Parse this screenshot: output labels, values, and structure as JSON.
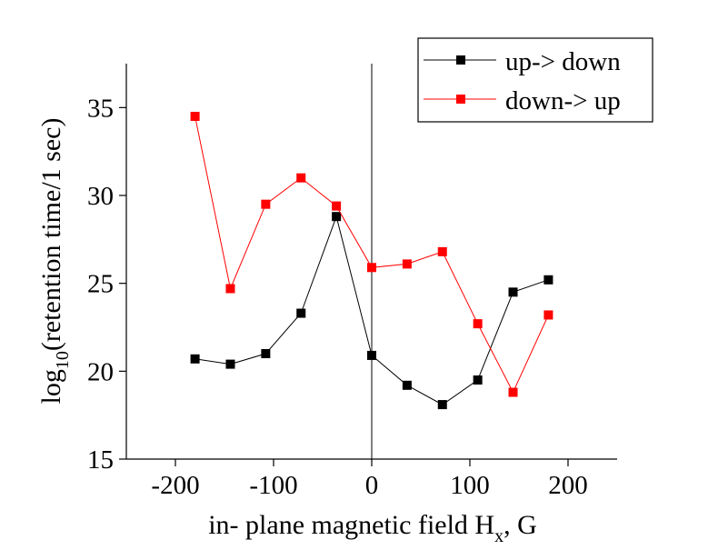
{
  "chart_data": {
    "type": "line",
    "title": "",
    "xlabel": {
      "main": "in- plane magnetic field H",
      "sub": "x",
      "tail": ", G"
    },
    "ylabel": {
      "pre": "log",
      "sub": "10",
      "post": "(retention time/1 sec)"
    },
    "xlim": [
      -250,
      250
    ],
    "ylim": [
      15,
      37.5
    ],
    "xticks": [
      -200,
      -100,
      0,
      100,
      200
    ],
    "xtick_labels": [
      "-200",
      "-100",
      "0",
      "100",
      "200"
    ],
    "yticks": [
      15,
      20,
      25,
      30,
      35
    ],
    "ytick_labels": [
      "15",
      "20",
      "25",
      "30",
      "35"
    ],
    "grid": false,
    "vertical_reference_line_x": 0,
    "legend": {
      "placement": "top-right"
    },
    "x": [
      -180,
      -144,
      -108,
      -72,
      -36,
      0,
      36,
      72,
      108,
      144,
      180
    ],
    "series": [
      {
        "name": "up-> down",
        "color": "#000000",
        "marker": "square",
        "values": [
          20.7,
          20.4,
          21.0,
          23.3,
          28.8,
          20.9,
          19.2,
          18.1,
          19.5,
          24.5,
          25.2
        ]
      },
      {
        "name": "down-> up",
        "color": "#ff0000",
        "marker": "square",
        "values": [
          34.5,
          24.7,
          29.5,
          31.0,
          29.4,
          25.9,
          26.1,
          26.8,
          22.7,
          18.8,
          23.2
        ]
      }
    ]
  }
}
